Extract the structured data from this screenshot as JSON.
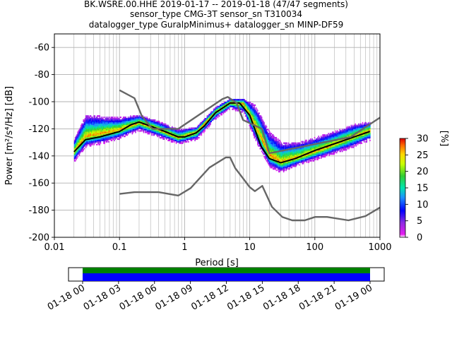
{
  "title_lines": [
    "BK.WSRE.00.HHE   2019-01-17 -- 2019-01-18  (47/47 segments)",
    "sensor_type CMG-3T sensor_sn T310034",
    "datalogger_type GuralpMinimus+ datalogger_sn MINP-DF59"
  ],
  "chart_data": {
    "type": "heatmap",
    "xscale": "log",
    "xlabel": "Period [s]",
    "ylabel": "Power [m²/s⁴/Hz] [dB]",
    "xlim": [
      0.01,
      1000
    ],
    "ylim": [
      -200,
      -50
    ],
    "x_ticks": [
      "0.01",
      "0.1",
      "1",
      "10",
      "100",
      "1000"
    ],
    "x_tick_values": [
      0.01,
      0.1,
      1,
      10,
      100,
      1000
    ],
    "y_ticks": [
      "-60",
      "-80",
      "-100",
      "-120",
      "-140",
      "-160",
      "-180",
      "-200"
    ],
    "y_tick_values": [
      -60,
      -80,
      -100,
      -120,
      -140,
      -160,
      -180,
      -200
    ],
    "grid": true,
    "colorbar": {
      "label": "[%]",
      "ticks": [
        "0",
        "5",
        "10",
        "15",
        "20",
        "25",
        "30"
      ],
      "tick_values": [
        0,
        5,
        10,
        15,
        20,
        25,
        30
      ],
      "range": [
        0,
        30
      ]
    },
    "series": [
      {
        "role": "mean",
        "color": "#000000",
        "points": [
          [
            0.02,
            -137
          ],
          [
            0.03,
            -128
          ],
          [
            0.05,
            -126
          ],
          [
            0.1,
            -122
          ],
          [
            0.15,
            -117
          ],
          [
            0.2,
            -115
          ],
          [
            0.3,
            -118
          ],
          [
            0.5,
            -122
          ],
          [
            0.8,
            -126
          ],
          [
            1,
            -126
          ],
          [
            1.5,
            -123
          ],
          [
            2,
            -118
          ],
          [
            3,
            -108
          ],
          [
            5,
            -101
          ],
          [
            7,
            -101
          ],
          [
            10,
            -110
          ],
          [
            15,
            -133
          ],
          [
            20,
            -142
          ],
          [
            30,
            -145
          ],
          [
            50,
            -142
          ],
          [
            100,
            -136
          ],
          [
            200,
            -131
          ],
          [
            400,
            -126
          ],
          [
            700,
            -122
          ]
        ]
      },
      {
        "role": "new-high-noise-model",
        "color": "#666666",
        "points": [
          [
            0.1,
            -91.5
          ],
          [
            0.17,
            -97.4
          ],
          [
            0.22,
            -110.5
          ],
          [
            0.32,
            -120
          ],
          [
            0.8,
            -120
          ],
          [
            3.8,
            -98
          ],
          [
            4.6,
            -96.5
          ],
          [
            6.3,
            -101
          ],
          [
            7.9,
            -113.5
          ],
          [
            15.4,
            -120
          ],
          [
            20,
            -138
          ],
          [
            354.8,
            -126
          ],
          [
            10000,
            -80
          ]
        ]
      },
      {
        "role": "new-low-noise-model",
        "color": "#666666",
        "points": [
          [
            0.1,
            -168
          ],
          [
            0.17,
            -166.7
          ],
          [
            0.4,
            -166.7
          ],
          [
            0.8,
            -169.2
          ],
          [
            1.24,
            -163.7
          ],
          [
            2.4,
            -148.6
          ],
          [
            4.3,
            -141.1
          ],
          [
            5,
            -141.1
          ],
          [
            6,
            -149
          ],
          [
            10,
            -163
          ],
          [
            12,
            -166
          ],
          [
            15.6,
            -162.1
          ],
          [
            21.9,
            -177.5
          ],
          [
            31.6,
            -185
          ],
          [
            45,
            -187.5
          ],
          [
            70,
            -187.5
          ],
          [
            101,
            -185
          ],
          [
            154,
            -185
          ],
          [
            328,
            -187.5
          ],
          [
            600,
            -184.4
          ],
          [
            1000,
            -178
          ]
        ]
      }
    ],
    "density_band": [
      {
        "x": 0.02,
        "y_low": -144,
        "y_high": -128,
        "peak": -137
      },
      {
        "x": 0.03,
        "y_low": -133,
        "y_high": -110,
        "peak": -126
      },
      {
        "x": 0.05,
        "y_low": -131,
        "y_high": -111,
        "peak": -124
      },
      {
        "x": 0.1,
        "y_low": -127,
        "y_high": -112,
        "peak": -121
      },
      {
        "x": 0.2,
        "y_low": -121,
        "y_high": -110,
        "peak": -116
      },
      {
        "x": 0.4,
        "y_low": -126,
        "y_high": -115,
        "peak": -121
      },
      {
        "x": 0.8,
        "y_low": -131,
        "y_high": -121,
        "peak": -127
      },
      {
        "x": 1.5,
        "y_low": -128,
        "y_high": -119,
        "peak": -123
      },
      {
        "x": 3,
        "y_low": -112,
        "y_high": -104,
        "peak": -108
      },
      {
        "x": 5,
        "y_low": -105,
        "y_high": -98,
        "peak": -101
      },
      {
        "x": 8,
        "y_low": -108,
        "y_high": -98,
        "peak": -102
      },
      {
        "x": 12,
        "y_low": -128,
        "y_high": -103,
        "peak": -118
      },
      {
        "x": 20,
        "y_low": -148,
        "y_high": -123,
        "peak": -140
      },
      {
        "x": 30,
        "y_low": -152,
        "y_high": -130,
        "peak": -145
      },
      {
        "x": 60,
        "y_low": -146,
        "y_high": -130,
        "peak": -141
      },
      {
        "x": 150,
        "y_low": -140,
        "y_high": -124,
        "peak": -134
      },
      {
        "x": 400,
        "y_low": -133,
        "y_high": -117,
        "peak": -126
      },
      {
        "x": 700,
        "y_low": -128,
        "y_high": -115,
        "peak": -122
      }
    ]
  },
  "time_axis": {
    "labels": [
      "01-18 00",
      "01-18 03",
      "01-18 06",
      "01-18 09",
      "01-18 12",
      "01-18 15",
      "01-18 18",
      "01-18 21",
      "01-19 00"
    ],
    "coverage_colors": [
      "#008000",
      "#0000ff"
    ],
    "coverage_fraction": 1.0
  }
}
